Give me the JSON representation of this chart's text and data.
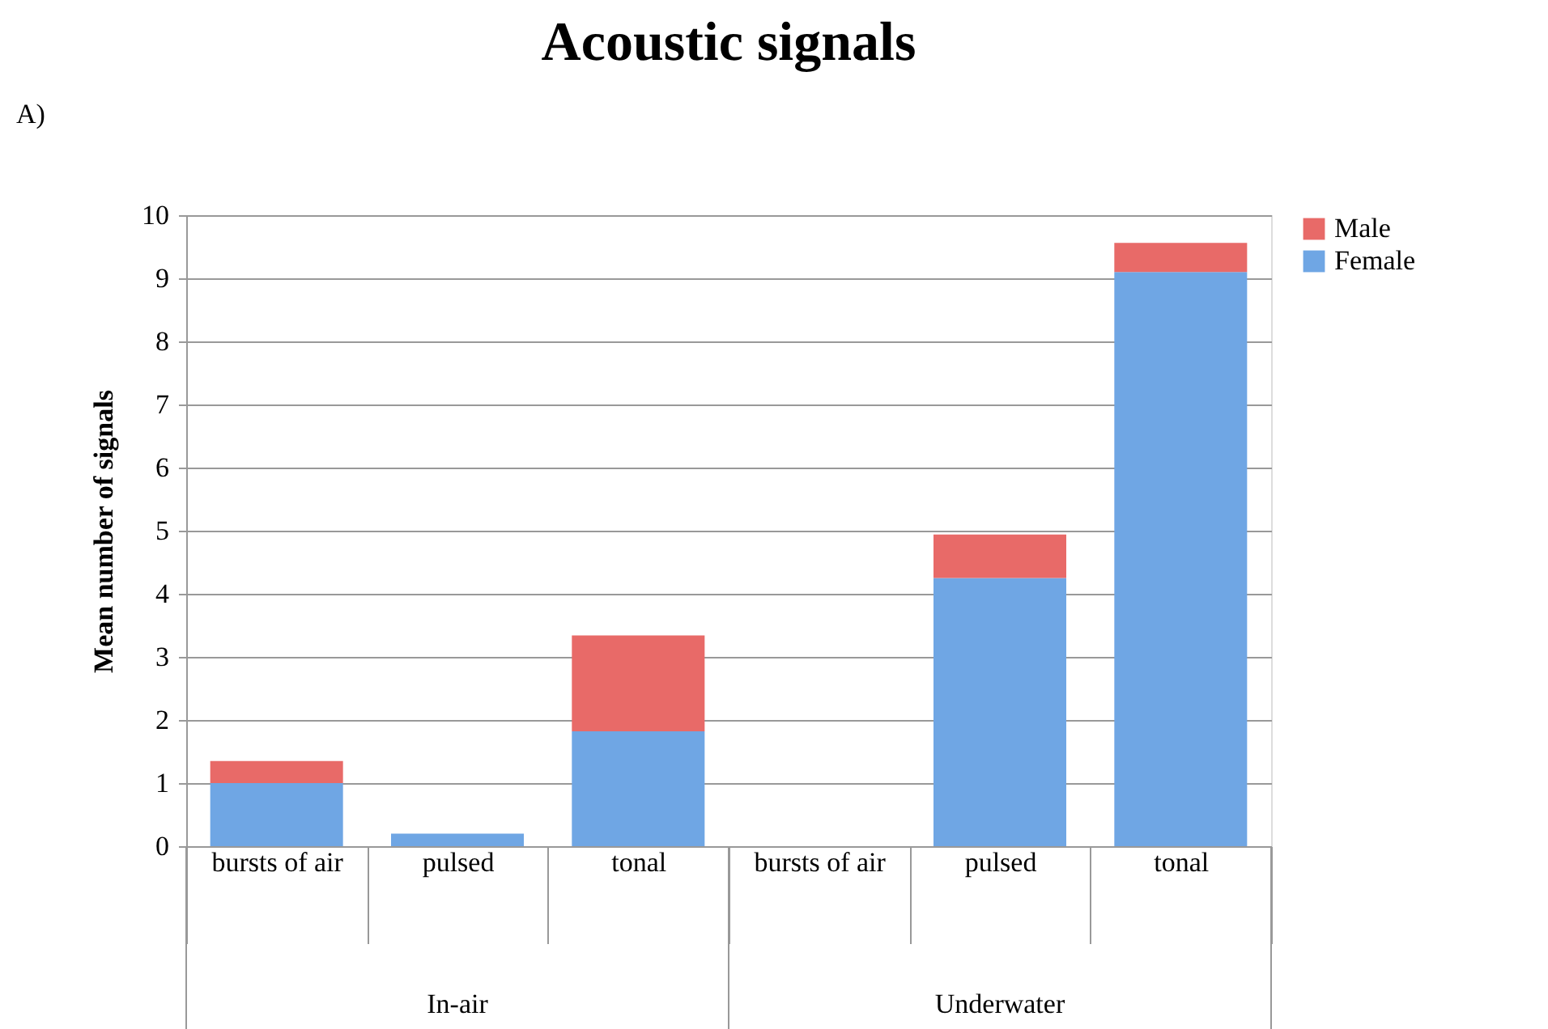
{
  "chart_data": {
    "type": "bar",
    "title": "Acoustic signals",
    "ylabel": "Mean number of signals",
    "categories": [
      "bursts of air",
      "pulsed",
      "tonal",
      "bursts of air",
      "pulsed",
      "tonal"
    ],
    "series": [
      {
        "name": "Female",
        "color": "#6fa6e4",
        "values": [
          1.0,
          0.2,
          1.82,
          0,
          4.25,
          9.1
        ]
      },
      {
        "name": "Male",
        "color": "#e86a68",
        "values": [
          0.35,
          0,
          1.52,
          0,
          0.69,
          0.46
        ]
      }
    ],
    "stacked": true,
    "ylim": [
      0,
      10
    ],
    "yticks": [
      0,
      1,
      2,
      3,
      4,
      5,
      6,
      7,
      8,
      9,
      10
    ],
    "grid": "y",
    "legend": "right",
    "annotations": [
      "In-air",
      "Underwater",
      "A)"
    ]
  }
}
